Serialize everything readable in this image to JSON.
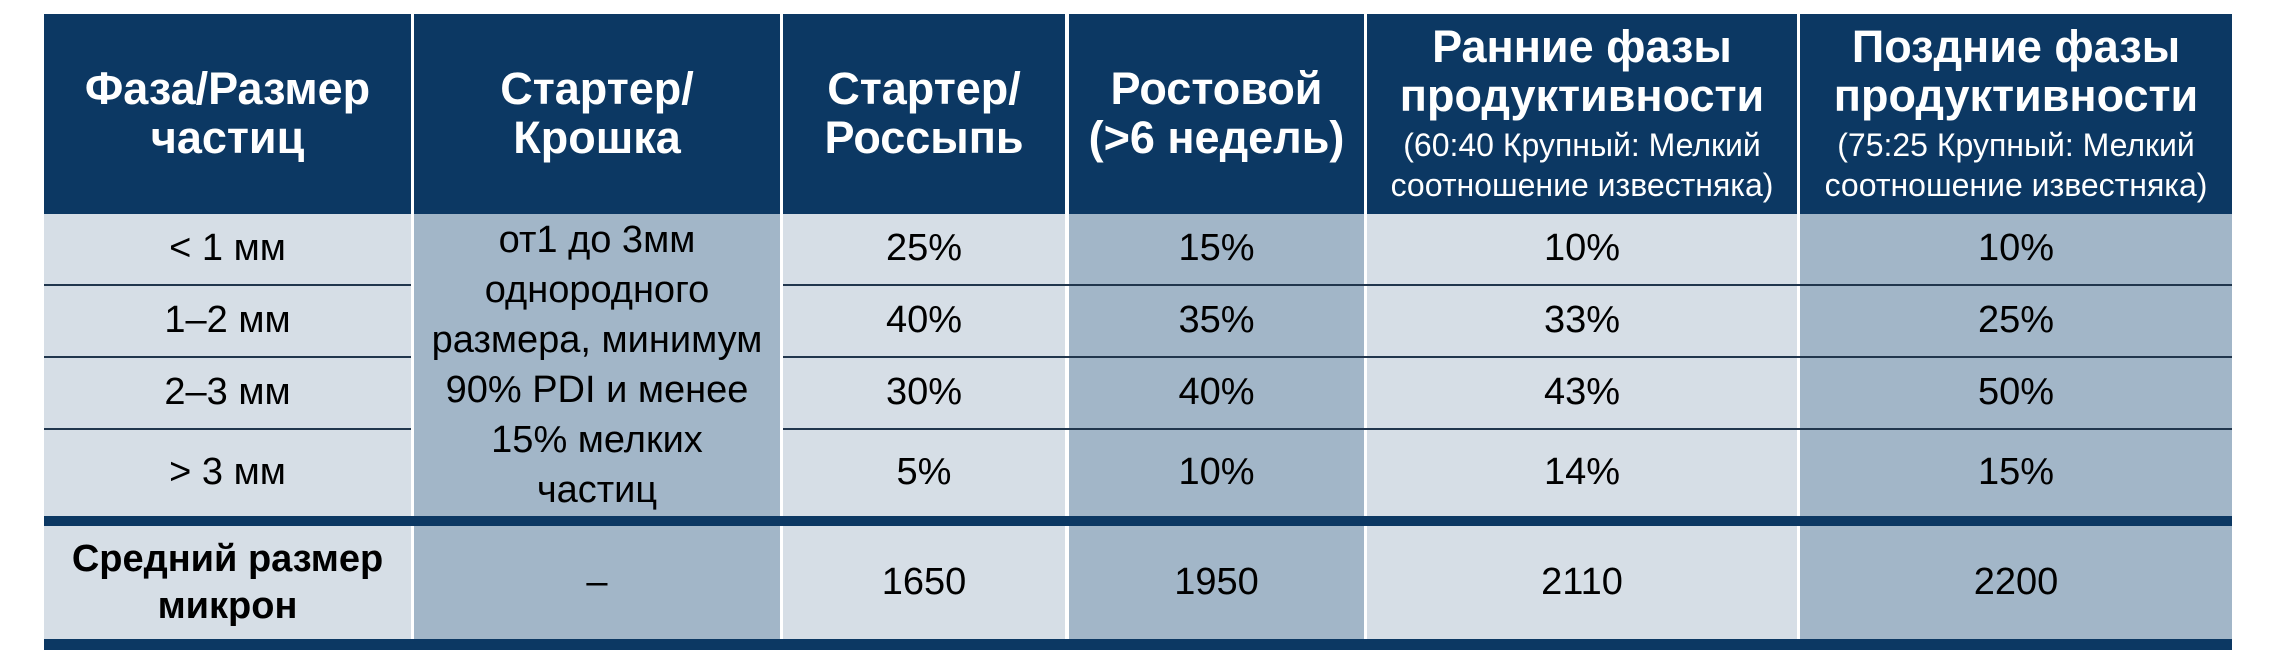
{
  "header": {
    "col1": "Фаза/Размер частиц",
    "col2": "Стартер/ Крошка",
    "col3": "Стартер/ Россыпь",
    "col4_line1": "Ростовой",
    "col4_line2": "(>6 недель)",
    "col5_title": "Ранние фазы продуктивности",
    "col5_sub": "(60:40 Крупный: Мелкий соотношение известняка)",
    "col6_title": "Поздние фазы продуктивности",
    "col6_sub": "(75:25 Крупный: Мелкий соотношение известняка)"
  },
  "crumble_text": "от1 до 3мм однородного размера, минимум 90% PDI и менее 15% мелких частиц",
  "rows": [
    {
      "size": "< 1 мм",
      "starter_mash": "25%",
      "grower": "15%",
      "early": "10%",
      "late": "10%"
    },
    {
      "size": "1–2 мм",
      "starter_mash": "40%",
      "grower": "35%",
      "early": "33%",
      "late": "25%"
    },
    {
      "size": "2–3 мм",
      "starter_mash": "30%",
      "grower": "40%",
      "early": "43%",
      "late": "50%"
    },
    {
      "size": "> 3 мм",
      "starter_mash": "5%",
      "grower": "10%",
      "early": "14%",
      "late": "15%"
    }
  ],
  "footer": {
    "label": "Средний размер микрон",
    "crumble": "–",
    "starter_mash": "1650",
    "grower": "1950",
    "early": "2110",
    "late": "2200"
  },
  "colors": {
    "header_bg": "#0c3863",
    "light_cell": "#d6dee6",
    "dark_cell": "#a2b6c8"
  }
}
